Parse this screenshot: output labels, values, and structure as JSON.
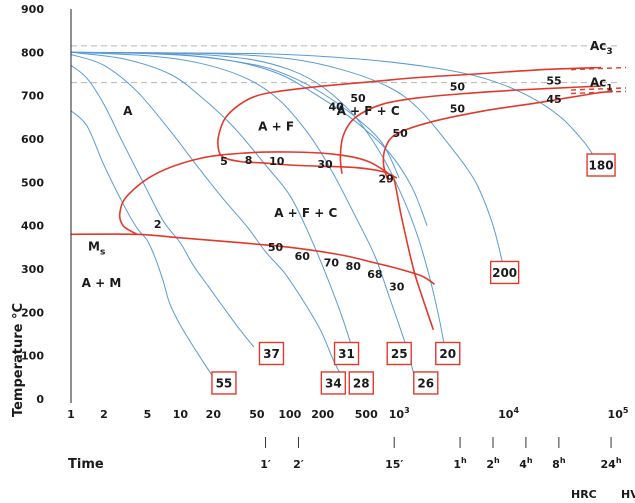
{
  "chart_data": {
    "type": "line",
    "x_scale": "log",
    "xlim": [
      1,
      100000
    ],
    "ylim": [
      0,
      900
    ],
    "ylabel": "Temperature °C",
    "xlabel": "Time",
    "x_ticks": [
      "1",
      "2",
      "5",
      "10",
      "20",
      "50",
      "100",
      "200",
      "500",
      "10^3",
      "10^4",
      "10^5"
    ],
    "x_tick_values": [
      1,
      2,
      5,
      10,
      20,
      50,
      100,
      200,
      500,
      1000,
      10000,
      100000
    ],
    "y_ticks": [
      "0",
      "100",
      "200",
      "300",
      "400",
      "500",
      "600",
      "700",
      "800",
      "900"
    ],
    "y_tick_values": [
      0,
      100,
      200,
      300,
      400,
      500,
      600,
      700,
      800,
      900
    ],
    "time_marks": [
      {
        "label": "1′",
        "seconds": 60
      },
      {
        "label": "2′",
        "seconds": 120
      },
      {
        "label": "15′",
        "seconds": 900
      },
      {
        "label": "1h",
        "seconds": 3600
      },
      {
        "label": "2h",
        "seconds": 7200
      },
      {
        "label": "4h",
        "seconds": 14400
      },
      {
        "label": "8h",
        "seconds": 28800
      },
      {
        "label": "24h",
        "seconds": 86400
      }
    ],
    "reference_lines": [
      {
        "label": "Ac3",
        "temperature": 815
      },
      {
        "label": "Ac1",
        "temperature": 730
      },
      {
        "label": "Ms",
        "temperature": 380
      }
    ],
    "phase_labels": [
      {
        "label": "A",
        "x": 3.3,
        "y": 655
      },
      {
        "label": "A + F",
        "x": 75,
        "y": 620
      },
      {
        "label": "A + F + C",
        "x": 520,
        "y": 655
      },
      {
        "label": "A + F + C",
        "x": 140,
        "y": 420
      },
      {
        "label": "A + M",
        "x": 1.9,
        "y": 258
      }
    ],
    "transformation_percent_labels": [
      {
        "label": "2",
        "x": 6.2,
        "y": 395
      },
      {
        "label": "5",
        "x": 25,
        "y": 540
      },
      {
        "label": "8",
        "x": 42,
        "y": 542
      },
      {
        "label": "10",
        "x": 76,
        "y": 540
      },
      {
        "label": "30",
        "x": 210,
        "y": 533
      },
      {
        "label": "29",
        "x": 760,
        "y": 500
      },
      {
        "label": "50",
        "x": 74,
        "y": 341
      },
      {
        "label": "60",
        "x": 130,
        "y": 321
      },
      {
        "label": "70",
        "x": 240,
        "y": 306
      },
      {
        "label": "80",
        "x": 380,
        "y": 298
      },
      {
        "label": "68",
        "x": 600,
        "y": 279
      },
      {
        "label": "30",
        "x": 950,
        "y": 250
      },
      {
        "label": "40",
        "x": 265,
        "y": 666
      },
      {
        "label": "50",
        "x": 420,
        "y": 685
      },
      {
        "label": "50",
        "x": 1020,
        "y": 605
      },
      {
        "label": "50",
        "x": 3400,
        "y": 712
      },
      {
        "label": "50",
        "x": 3400,
        "y": 661
      },
      {
        "label": "55",
        "x": 26000,
        "y": 726
      },
      {
        "label": "45",
        "x": 26000,
        "y": 683
      }
    ],
    "hardness_labels": {
      "hrc": "HRC",
      "hv": "HV"
    },
    "hardness_values": [
      {
        "value": "55",
        "x": 25,
        "y": 37,
        "unit": "HRC"
      },
      {
        "value": "37",
        "x": 68,
        "y": 105,
        "unit": "HRC"
      },
      {
        "value": "34",
        "x": 250,
        "y": 37,
        "unit": "HRC"
      },
      {
        "value": "31",
        "x": 330,
        "y": 105,
        "unit": "HRC"
      },
      {
        "value": "28",
        "x": 450,
        "y": 37,
        "unit": "HRC"
      },
      {
        "value": "25",
        "x": 1000,
        "y": 105,
        "unit": "HRC"
      },
      {
        "value": "26",
        "x": 1750,
        "y": 37,
        "unit": "HRC"
      },
      {
        "value": "20",
        "x": 2780,
        "y": 105,
        "unit": "HRC"
      },
      {
        "value": "200",
        "x": 9200,
        "y": 292,
        "unit": "HV"
      },
      {
        "value": "180",
        "x": 70000,
        "y": 540,
        "unit": "HV"
      }
    ],
    "cooling_curves": [
      [
        [
          1,
          665
        ],
        [
          1.4,
          630
        ],
        [
          2,
          540
        ],
        [
          3,
          450
        ],
        [
          4,
          395
        ],
        [
          5,
          365
        ],
        [
          6,
          320
        ],
        [
          7,
          270
        ],
        [
          8,
          220
        ],
        [
          10,
          170
        ],
        [
          14,
          110
        ],
        [
          20,
          50
        ]
      ],
      [
        [
          1,
          770
        ],
        [
          1.4,
          740
        ],
        [
          2,
          680
        ],
        [
          3,
          590
        ],
        [
          5,
          480
        ],
        [
          7,
          410
        ],
        [
          10,
          360
        ],
        [
          13,
          310
        ],
        [
          18,
          260
        ],
        [
          25,
          210
        ],
        [
          35,
          160
        ],
        [
          47,
          120
        ]
      ],
      [
        [
          1,
          795
        ],
        [
          2,
          770
        ],
        [
          4,
          710
        ],
        [
          8,
          620
        ],
        [
          15,
          530
        ],
        [
          25,
          460
        ],
        [
          40,
          400
        ],
        [
          60,
          340
        ],
        [
          90,
          290
        ],
        [
          130,
          230
        ],
        [
          190,
          160
        ],
        [
          250,
          90
        ],
        [
          300,
          50
        ]
      ],
      [
        [
          1,
          800
        ],
        [
          3,
          785
        ],
        [
          8,
          750
        ],
        [
          15,
          700
        ],
        [
          30,
          630
        ],
        [
          60,
          540
        ],
        [
          100,
          470
        ],
        [
          150,
          380
        ],
        [
          220,
          280
        ],
        [
          300,
          190
        ],
        [
          380,
          110
        ]
      ],
      [
        [
          1,
          800
        ],
        [
          5,
          792
        ],
        [
          15,
          775
        ],
        [
          40,
          740
        ],
        [
          80,
          690
        ],
        [
          150,
          610
        ],
        [
          250,
          520
        ],
        [
          400,
          420
        ],
        [
          600,
          330
        ],
        [
          800,
          240
        ],
        [
          1000,
          170
        ],
        [
          1200,
          110
        ],
        [
          1350,
          60
        ]
      ],
      [
        [
          1,
          800
        ],
        [
          10,
          797
        ],
        [
          40,
          785
        ],
        [
          100,
          760
        ],
        [
          200,
          720
        ],
        [
          400,
          650
        ],
        [
          700,
          560
        ],
        [
          1100,
          460
        ],
        [
          1500,
          370
        ],
        [
          1900,
          280
        ],
        [
          2300,
          190
        ],
        [
          2600,
          120
        ]
      ],
      [
        [
          1,
          800
        ],
        [
          20,
          797
        ],
        [
          100,
          785
        ],
        [
          300,
          760
        ],
        [
          800,
          720
        ],
        [
          1500,
          670
        ],
        [
          3000,
          580
        ],
        [
          5000,
          500
        ],
        [
          7000,
          410
        ],
        [
          8500,
          330
        ],
        [
          9500,
          270
        ]
      ],
      [
        [
          1,
          800
        ],
        [
          50,
          797
        ],
        [
          400,
          785
        ],
        [
          2000,
          765
        ],
        [
          6000,
          740
        ],
        [
          15000,
          700
        ],
        [
          30000,
          650
        ],
        [
          50000,
          590
        ],
        [
          65000,
          545
        ]
      ],
      [
        [
          1,
          800
        ],
        [
          5,
          797
        ],
        [
          15,
          790
        ],
        [
          50,
          770
        ],
        [
          100,
          745
        ],
        [
          200,
          705
        ],
        [
          400,
          650
        ],
        [
          700,
          590
        ],
        [
          1000,
          510
        ]
      ],
      [
        [
          1,
          800
        ],
        [
          8,
          796
        ],
        [
          30,
          780
        ],
        [
          80,
          750
        ],
        [
          180,
          700
        ],
        [
          400,
          640
        ],
        [
          800,
          570
        ],
        [
          1300,
          490
        ],
        [
          1800,
          400
        ]
      ]
    ],
    "transformation_curves": [
      [
        [
          70000,
          765
        ],
        [
          20000,
          760
        ],
        [
          5000,
          750
        ],
        [
          1500,
          742
        ],
        [
          600,
          733
        ],
        [
          200,
          722
        ],
        [
          80,
          710
        ],
        [
          50,
          700
        ],
        [
          35,
          680
        ],
        [
          26,
          650
        ],
        [
          23,
          620
        ],
        [
          22,
          590
        ],
        [
          24,
          560
        ],
        [
          35,
          548
        ],
        [
          55,
          545
        ],
        [
          100,
          540
        ],
        [
          200,
          537
        ],
        [
          400,
          534
        ],
        [
          700,
          525
        ],
        [
          950,
          510
        ]
      ],
      [
        [
          4,
          380
        ],
        [
          3,
          400
        ],
        [
          2.8,
          430
        ],
        [
          3.3,
          470
        ],
        [
          6,
          520
        ],
        [
          15,
          555
        ],
        [
          40,
          568
        ],
        [
          100,
          570
        ],
        [
          250,
          565
        ],
        [
          500,
          550
        ],
        [
          800,
          520
        ],
        [
          900,
          505
        ],
        [
          1050,
          420
        ],
        [
          1350,
          300
        ],
        [
          1650,
          230
        ],
        [
          2050,
          160
        ]
      ],
      [
        [
          300,
          520
        ],
        [
          290,
          560
        ],
        [
          310,
          610
        ],
        [
          400,
          650
        ],
        [
          700,
          680
        ],
        [
          1500,
          695
        ],
        [
          4000,
          705
        ],
        [
          12000,
          713
        ],
        [
          30000,
          718
        ],
        [
          70000,
          722
        ]
      ],
      [
        [
          800,
          500
        ],
        [
          720,
          540
        ],
        [
          750,
          580
        ],
        [
          950,
          612
        ],
        [
          2000,
          640
        ],
        [
          6000,
          665
        ],
        [
          20000,
          685
        ],
        [
          60000,
          705
        ],
        [
          90000,
          710
        ]
      ]
    ],
    "ms_curve": [
      [
        1,
        380
      ],
      [
        4,
        380
      ],
      [
        10,
        372
      ],
      [
        30,
        362
      ],
      [
        100,
        350
      ],
      [
        300,
        332
      ],
      [
        600,
        314
      ],
      [
        1000,
        300
      ],
      [
        1600,
        284
      ],
      [
        2100,
        265
      ]
    ],
    "reference_dashed": [
      {
        "temperature": 815,
        "from": 1,
        "to": 100000
      },
      {
        "temperature": 730,
        "from": 1,
        "to": 100000
      }
    ],
    "colors": {
      "cooling": "#5b9bd5",
      "transformation": "#e03a2c",
      "reference": "#b8b8b8",
      "box": "#e03a2c"
    }
  }
}
